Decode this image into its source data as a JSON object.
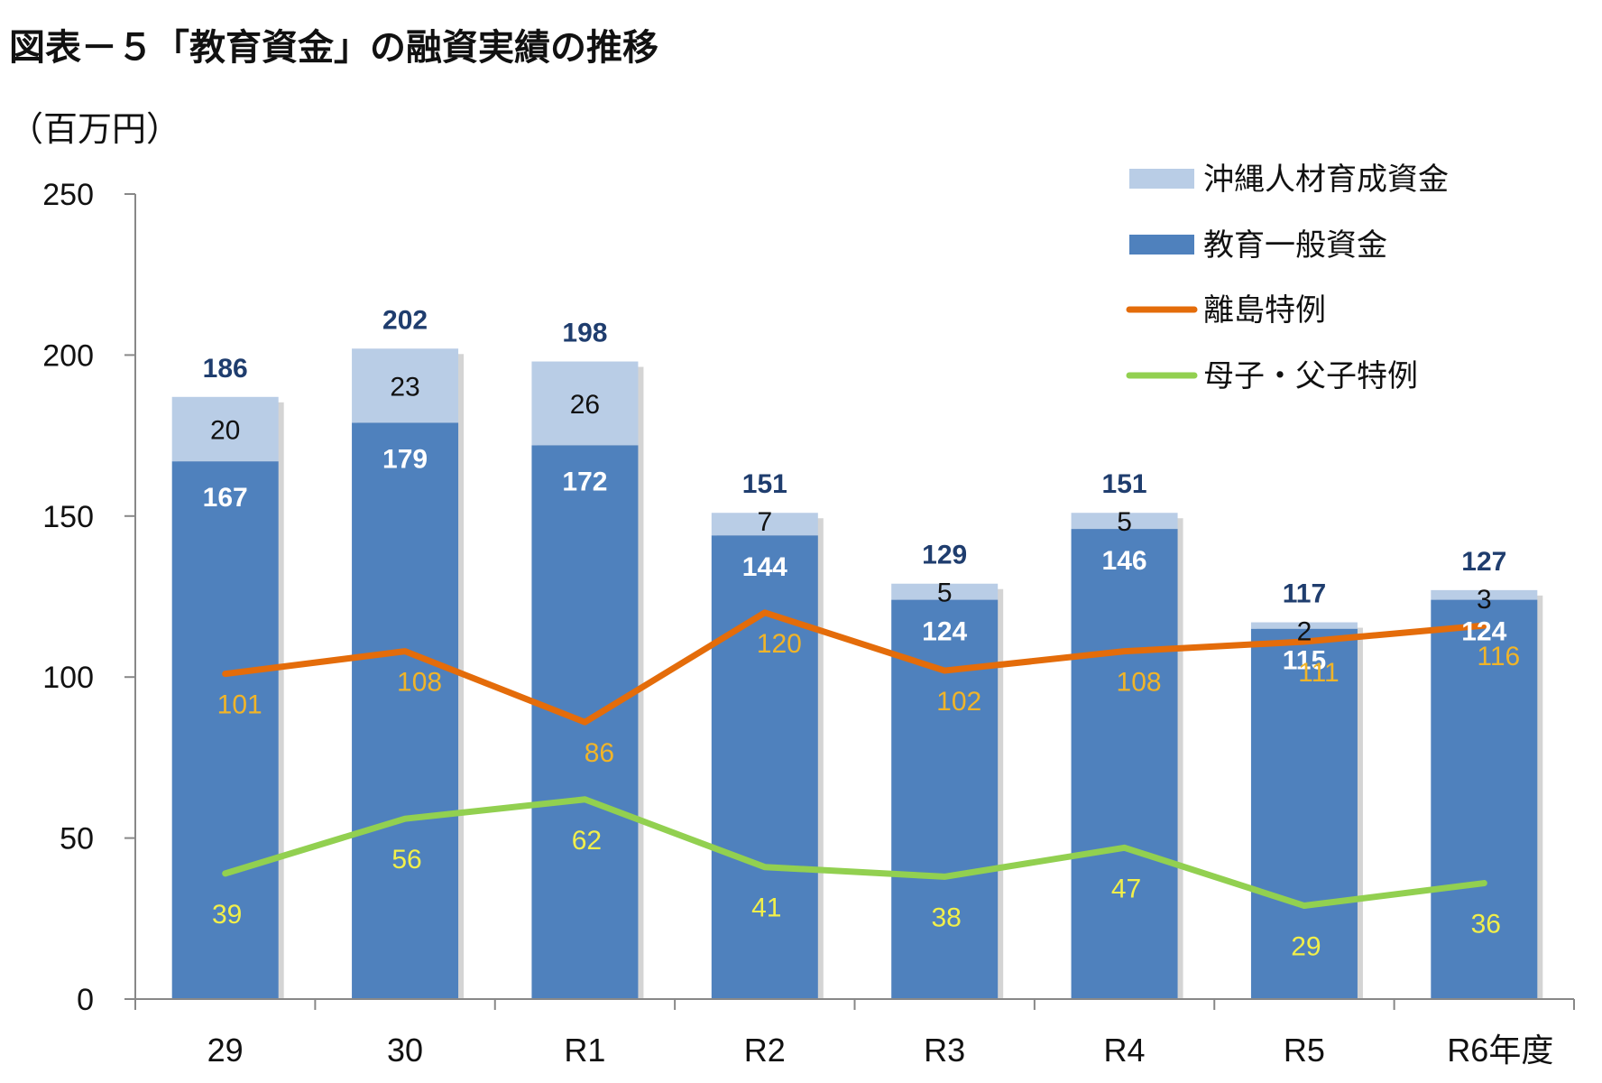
{
  "title": "図表－５「教育資金」の融資実績の推移",
  "unit": "（百万円）",
  "colors": {
    "okinawa": "#b9cde6",
    "general": "#4f81bd",
    "ritou": "#e46c0a",
    "boshi": "#92d050",
    "total_label": "#1f3d6e",
    "ritou_label": "#f0b429",
    "boshi_label": "#f2ef4a"
  },
  "chart_data": {
    "type": "bar",
    "stacked": true,
    "categories": [
      "29",
      "30",
      "R1",
      "R2",
      "R3",
      "R4",
      "R5",
      "R6年度"
    ],
    "y_ticks": [
      "0",
      "50",
      "100",
      "150",
      "200",
      "250"
    ],
    "ylim": [
      0,
      250
    ],
    "grid": false,
    "legend_position": "top-right",
    "series": [
      {
        "name": "教育一般資金",
        "kind": "bar",
        "values": [
          167,
          179,
          172,
          144,
          124,
          146,
          115,
          124
        ]
      },
      {
        "name": "沖縄人材育成資金",
        "kind": "bar",
        "values": [
          20,
          23,
          26,
          7,
          5,
          5,
          2,
          3
        ]
      },
      {
        "name": "離島特例",
        "kind": "line",
        "values": [
          101,
          108,
          86,
          120,
          102,
          108,
          111,
          116
        ]
      },
      {
        "name": "母子・父子特例",
        "kind": "line",
        "values": [
          39,
          56,
          62,
          41,
          38,
          47,
          29,
          36
        ]
      }
    ],
    "totals": [
      186,
      202,
      198,
      151,
      129,
      151,
      117,
      127
    ],
    "legend": [
      "沖縄人材育成資金",
      "教育一般資金",
      "離島特例",
      "母子・父子特例"
    ]
  }
}
